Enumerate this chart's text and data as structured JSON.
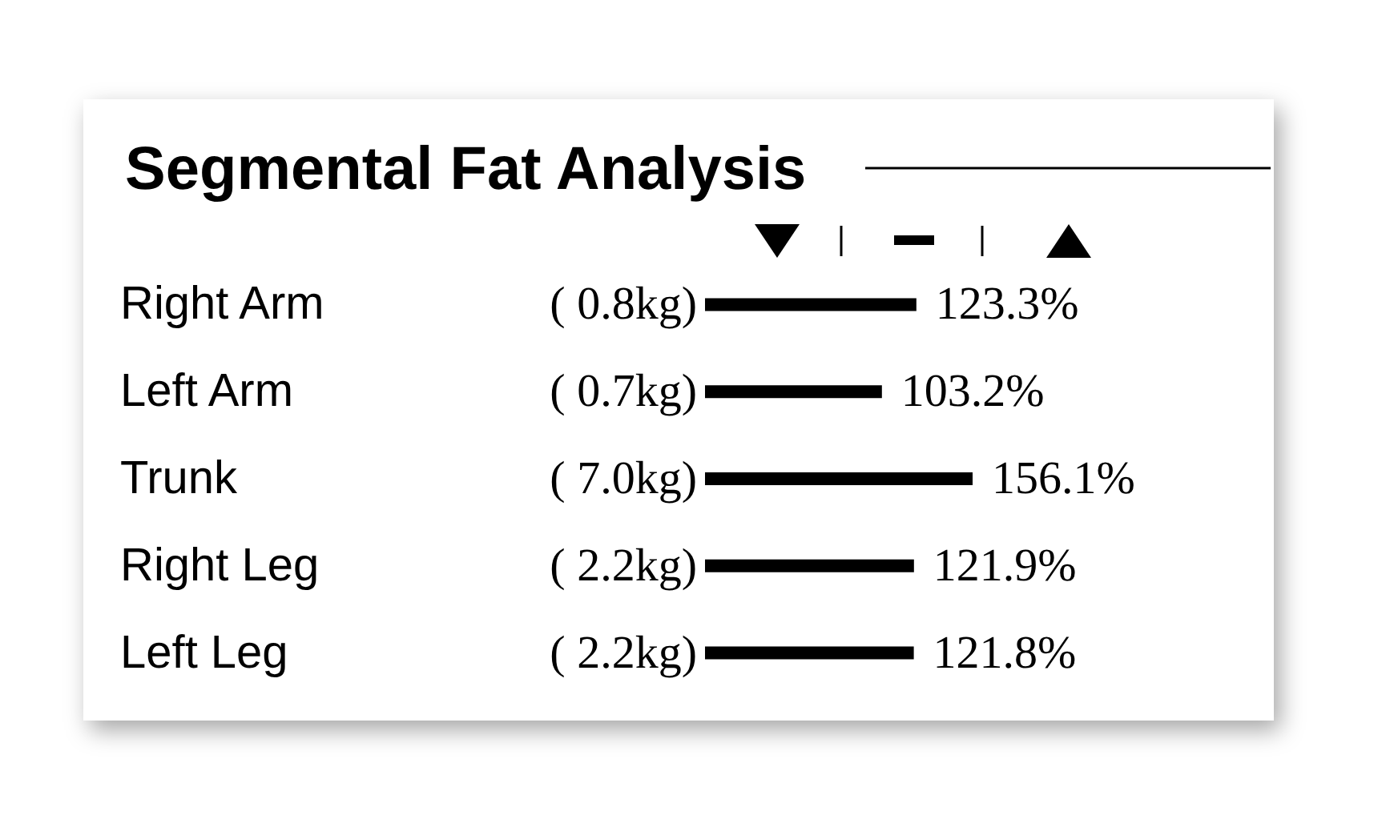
{
  "chart_data": {
    "type": "bar",
    "orientation": "horizontal",
    "title": "Segmental Fat Analysis",
    "categories": [
      "Right Arm",
      "Left Arm",
      "Trunk",
      "Right Leg",
      "Left Leg"
    ],
    "values": [
      123.3,
      103.2,
      156.1,
      121.9,
      121.8
    ],
    "value_labels": [
      "123.3%",
      "103.2%",
      "156.1%",
      "121.9%",
      "121.8%"
    ],
    "color": "#000000",
    "tick_labels": "y",
    "annotations": [
      "( 0.8kg)",
      "( 0.7kg)",
      "( 7.0kg)",
      "( 2.2kg)",
      "( 2.2kg)"
    ]
  }
}
